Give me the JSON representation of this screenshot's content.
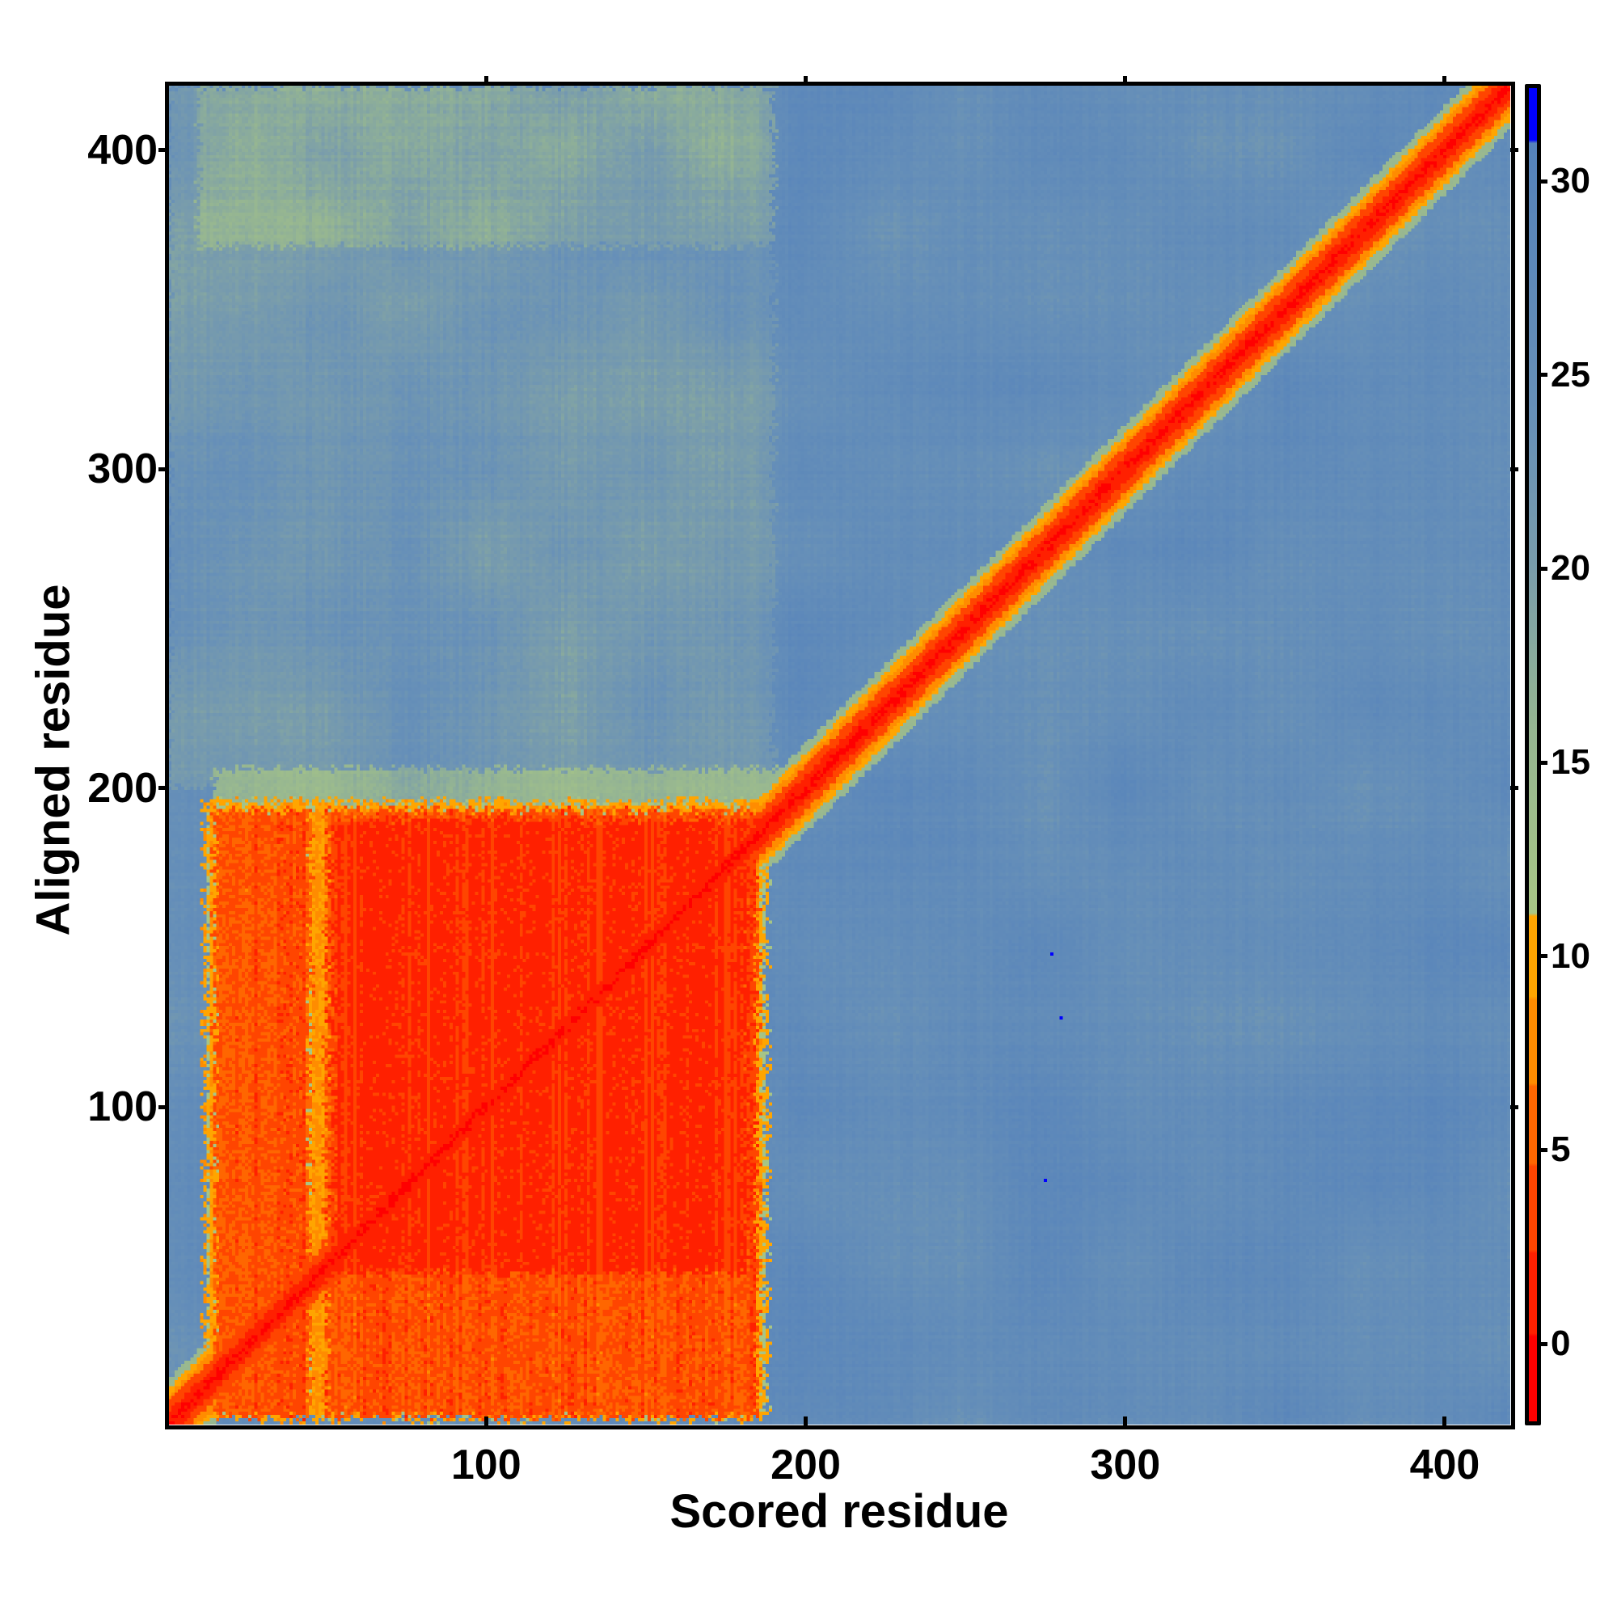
{
  "chart_data": {
    "type": "heatmap",
    "title": "",
    "xlabel": "Scored residue",
    "ylabel": "Aligned residue",
    "xlim": [
      0.5,
      420.5
    ],
    "ylim": [
      0.5,
      420.5
    ],
    "x_ticks": [
      100,
      200,
      300,
      400
    ],
    "y_ticks": [
      100,
      200,
      300,
      400
    ],
    "colorbar": {
      "ticks": [
        0,
        5,
        10,
        15,
        20,
        25,
        30
      ],
      "range": [
        -2,
        32.4
      ],
      "bands": [
        {
          "max": 0.25,
          "color": "#ff0000"
        },
        {
          "max": 2.4,
          "color": "#ff2000"
        },
        {
          "max": 4.6,
          "color": "#ff4500"
        },
        {
          "max": 6.7,
          "color": "#ff6600"
        },
        {
          "max": 8.9,
          "color": "#ff8c00"
        },
        {
          "max": 11.1,
          "color": "#ffa500"
        }
      ],
      "gradient": [
        {
          "v": 11.1,
          "color": "#a8c685"
        },
        {
          "v": 16,
          "color": "#95b592"
        },
        {
          "v": 20,
          "color": "#7a9dab"
        },
        {
          "v": 24,
          "color": "#6790b8"
        },
        {
          "v": 31,
          "color": "#5582bb"
        }
      ],
      "over": {
        "min": 31,
        "color": "#0000ff"
      }
    },
    "background_value": 25.5,
    "regions": [
      {
        "name": "upper-left",
        "x": [
          1,
          190
        ],
        "y": [
          200,
          420
        ],
        "value": 22
      },
      {
        "name": "upper-left-top",
        "x": [
          10,
          190
        ],
        "y": [
          370,
          420
        ],
        "value": 18.5
      },
      {
        "name": "above-block-band",
        "x": [
          15,
          192
        ],
        "y": [
          192,
          206
        ],
        "value": 16
      },
      {
        "name": "block-halo",
        "x": [
          12,
          188
        ],
        "y": [
          2,
          196
        ],
        "value": 10
      },
      {
        "name": "block",
        "x": [
          15,
          185
        ],
        "y": [
          3,
          193
        ],
        "value": 4.2
      },
      {
        "name": "block-core",
        "x": [
          52,
          182
        ],
        "y": [
          48,
          190
        ],
        "value": 1.8
      },
      {
        "name": "block-gap",
        "x": [
          45,
          50
        ],
        "y": [
          3,
          193
        ],
        "value": 9
      },
      {
        "name": "lower-right",
        "x": [
          190,
          420
        ],
        "y": [
          1,
          188
        ],
        "value": 26
      }
    ],
    "diagonal_profile": [
      {
        "dist": 1.5,
        "value": 0.1
      },
      {
        "dist": 4,
        "value": 1.5
      },
      {
        "dist": 7,
        "value": 4
      },
      {
        "dist": 9,
        "value": 7.5
      },
      {
        "dist": 11,
        "value": 10.5
      },
      {
        "dist": 14,
        "value": 15
      }
    ],
    "outliers": [
      {
        "x": 277,
        "y": 148,
        "value": 33
      },
      {
        "x": 280,
        "y": 128,
        "value": 33
      },
      {
        "x": 275,
        "y": 77,
        "value": 33
      }
    ]
  }
}
